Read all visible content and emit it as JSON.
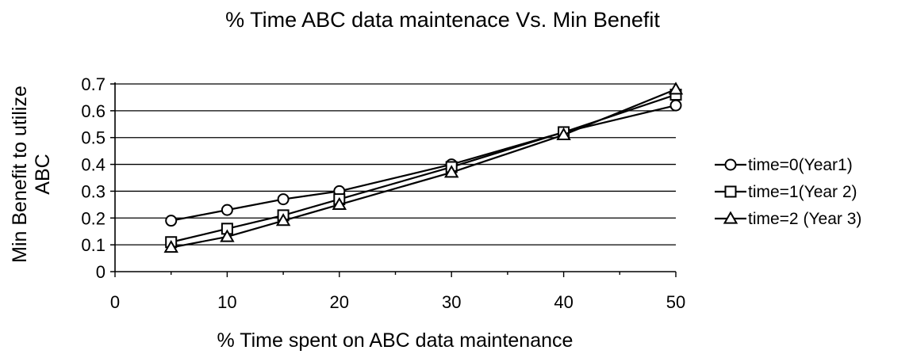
{
  "chart_data": {
    "type": "line",
    "title": "% Time ABC data maintenace Vs. Min Benefit",
    "xlabel": "% Time spent on ABC data maintenance",
    "ylabel_line1": "Min Benefit to utilize",
    "ylabel_line2": "ABC",
    "xlim": [
      0,
      50
    ],
    "ylim": [
      0,
      0.7
    ],
    "x_ticks": [
      "0",
      "10",
      "20",
      "30",
      "40",
      "50"
    ],
    "y_ticks": [
      "0",
      "0.1",
      "0.2",
      "0.3",
      "0.4",
      "0.5",
      "0.6",
      "0.7"
    ],
    "grid": "horizontal",
    "legend_position": "right",
    "x": [
      5,
      10,
      15,
      20,
      30,
      40,
      50
    ],
    "series": [
      {
        "name": "time=0(Year1)",
        "marker": "circle",
        "values": [
          0.19,
          0.23,
          0.27,
          0.3,
          0.4,
          0.52,
          0.62
        ]
      },
      {
        "name": "time=1(Year 2)",
        "marker": "square",
        "values": [
          0.11,
          0.16,
          0.21,
          0.27,
          0.39,
          0.52,
          0.66
        ]
      },
      {
        "name": "time=2 (Year 3)",
        "marker": "triangle",
        "values": [
          0.09,
          0.13,
          0.19,
          0.25,
          0.37,
          0.51,
          0.68
        ]
      }
    ],
    "line_color": "#000000"
  }
}
